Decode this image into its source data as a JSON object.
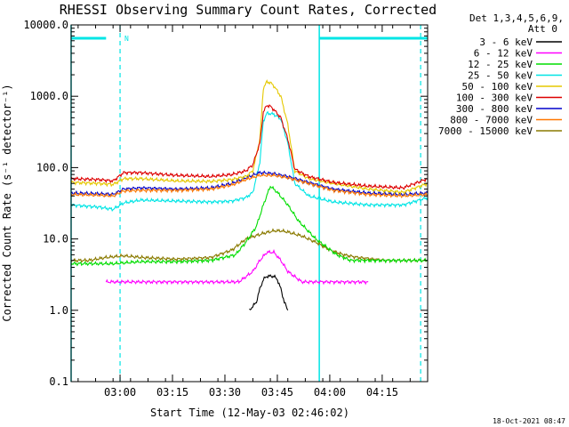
{
  "chart_data": {
    "type": "line",
    "title": "RHESSI Observing Summary Count Rates, Corrected",
    "xlabel": "Start Time (12-May-03 02:46:02)",
    "ylabel": "Corrected Count Rate (s⁻¹ detector⁻¹)",
    "yscale": "log",
    "ylim": [
      0.1,
      10000
    ],
    "xlim_minutes": [
      0,
      102
    ],
    "x_ticks": [
      {
        "label": "03:00",
        "minutes": 14
      },
      {
        "label": "03:15",
        "minutes": 29
      },
      {
        "label": "03:30",
        "minutes": 44
      },
      {
        "label": "03:45",
        "minutes": 59
      },
      {
        "label": "04:00",
        "minutes": 74
      },
      {
        "label": "04:15",
        "minutes": 89
      }
    ],
    "y_ticks": [
      {
        "label": "0.1",
        "value": 0.1
      },
      {
        "label": "1.0",
        "value": 1
      },
      {
        "label": "10.0",
        "value": 10
      },
      {
        "label": "100.0",
        "value": 100
      },
      {
        "label": "1000.0",
        "value": 1000
      },
      {
        "label": "10000.0",
        "value": 10000
      }
    ],
    "legend_header": [
      "Det 1,3,4,5,6,9,",
      "Att 0"
    ],
    "series": [
      {
        "name": "3 - 6 keV",
        "color": "#000000",
        "x": [
          51,
          53,
          54,
          55,
          56,
          57,
          58,
          59,
          60,
          61,
          62
        ],
        "values": [
          1,
          1.3,
          2,
          2.7,
          3,
          3,
          3,
          2.7,
          2,
          1.3,
          1
        ]
      },
      {
        "name": "6 - 12 keV",
        "color": "#ff00ff",
        "x": [
          10,
          20,
          30,
          40,
          48,
          52,
          54,
          56,
          58,
          60,
          62,
          66,
          75,
          85
        ],
        "values": [
          2.5,
          2.5,
          2.5,
          2.5,
          2.5,
          3.5,
          5,
          6.5,
          6.5,
          5,
          3.5,
          2.5,
          2.5,
          2.5
        ]
      },
      {
        "name": "12 - 25 keV",
        "color": "#00dd00",
        "x": [
          0,
          5,
          12,
          20,
          30,
          40,
          47,
          50,
          53,
          55,
          57,
          59,
          62,
          65,
          70,
          76,
          80,
          90,
          102
        ],
        "values": [
          4.5,
          4.5,
          4.5,
          4.8,
          4.8,
          5,
          6,
          9,
          15,
          30,
          55,
          45,
          30,
          18,
          10,
          6,
          5,
          5,
          5
        ]
      },
      {
        "name": "25 - 50 keV",
        "color": "#00e5e5",
        "x": [
          0,
          8,
          12,
          15,
          20,
          30,
          40,
          46,
          50,
          52,
          54,
          55,
          56,
          58,
          60,
          62,
          64,
          68,
          75,
          85,
          95,
          102
        ],
        "values": [
          30,
          28,
          26,
          32,
          35,
          34,
          33,
          34,
          38,
          45,
          120,
          450,
          580,
          560,
          480,
          220,
          60,
          40,
          33,
          30,
          30,
          38
        ]
      },
      {
        "name": "50 - 100 keV",
        "color": "#e5c800",
        "x": [
          0,
          8,
          12,
          15,
          20,
          30,
          40,
          46,
          50,
          52,
          54,
          55,
          56,
          57,
          58,
          60,
          62,
          64,
          68,
          75,
          85,
          95,
          102
        ],
        "values": [
          62,
          60,
          58,
          70,
          70,
          65,
          64,
          68,
          75,
          90,
          250,
          1300,
          1600,
          1550,
          1400,
          1000,
          400,
          90,
          70,
          60,
          50,
          45,
          60
        ]
      },
      {
        "name": "100 - 300 keV",
        "color": "#dd0000",
        "x": [
          0,
          8,
          12,
          15,
          20,
          30,
          40,
          46,
          50,
          52,
          54,
          55,
          56,
          57,
          58,
          60,
          62,
          64,
          68,
          75,
          85,
          95,
          102
        ],
        "values": [
          70,
          68,
          65,
          85,
          85,
          78,
          75,
          80,
          90,
          110,
          220,
          600,
          750,
          720,
          650,
          500,
          250,
          95,
          75,
          62,
          55,
          52,
          70
        ]
      },
      {
        "name": "300 - 800 keV",
        "color": "#0000cc",
        "x": [
          0,
          8,
          12,
          15,
          20,
          30,
          40,
          46,
          50,
          54,
          58,
          62,
          68,
          75,
          85,
          95,
          102
        ],
        "values": [
          44,
          43,
          42,
          50,
          52,
          50,
          52,
          60,
          72,
          85,
          82,
          75,
          62,
          50,
          44,
          42,
          44
        ]
      },
      {
        "name": "800 - 7000 keV",
        "color": "#ff7700",
        "x": [
          0,
          8,
          12,
          15,
          20,
          30,
          40,
          46,
          50,
          54,
          58,
          62,
          68,
          75,
          85,
          95,
          102
        ],
        "values": [
          42,
          41,
          40,
          47,
          48,
          48,
          50,
          57,
          68,
          78,
          78,
          72,
          60,
          48,
          42,
          40,
          42
        ]
      },
      {
        "name": "7000 - 15000 keV",
        "color": "#8a7a00",
        "x": [
          0,
          5,
          10,
          15,
          20,
          30,
          40,
          46,
          50,
          55,
          58,
          60,
          62,
          66,
          70,
          74,
          78,
          82,
          90,
          102
        ],
        "values": [
          5,
          5,
          5.5,
          5.8,
          5.5,
          5.2,
          5.5,
          7,
          10,
          12,
          13,
          13,
          12.5,
          11,
          9,
          7,
          6,
          5.5,
          5,
          5
        ]
      }
    ],
    "annotations": {
      "n_label": "N",
      "cyan_bars_y": 6500,
      "cyan_bars_x": [
        [
          0,
          10
        ],
        [
          71,
          102
        ]
      ],
      "dashed_markers_minutes": [
        14,
        100
      ],
      "solid_markers_minutes": [
        0,
        71
      ]
    }
  },
  "timestamp": "18-Oct-2021 08:47"
}
